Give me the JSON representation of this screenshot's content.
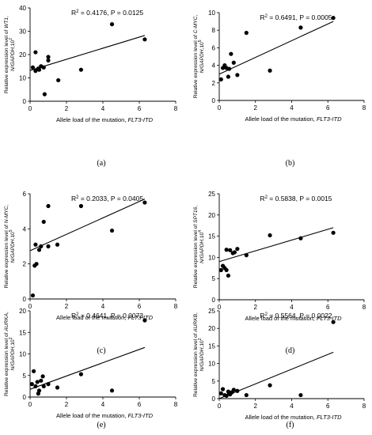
{
  "figure": {
    "panel_labels": [
      "(a)",
      "(b)",
      "(c)",
      "(d)",
      "(e)",
      "(f)"
    ]
  },
  "chart_data": [
    {
      "type": "scatter",
      "panel": "(a)",
      "stat_text": "R² = 0.4176, P = 0.0125",
      "xlabel": "Allele load of the mutation, FLT3-ITD",
      "xlabel_parts": [
        "Allele load of the mutation, ",
        "FLT3-ITD"
      ],
      "ylabel_lines": [
        [
          "Relative expression level of ",
          "WT1",
          ","
        ],
        [
          "N/GAPDH",
          ",10",
          "2"
        ]
      ],
      "xlim": [
        0,
        8
      ],
      "ylim": [
        0,
        40
      ],
      "xticks": [
        "0",
        "2",
        "4",
        "6",
        "8"
      ],
      "yticks": [
        "0",
        "10",
        "20",
        "30",
        "40"
      ],
      "x": [
        0.15,
        0.3,
        0.3,
        0.45,
        0.5,
        0.6,
        0.75,
        0.8,
        1.0,
        1.0,
        1.55,
        2.8,
        4.5,
        6.3
      ],
      "y": [
        14.5,
        13.0,
        21.0,
        14.0,
        13.5,
        15.0,
        14.5,
        3.0,
        19.0,
        17.5,
        9.0,
        13.5,
        33.0,
        26.5
      ],
      "trend": [
        [
          0,
          13.2
        ],
        [
          6.3,
          28.2
        ]
      ]
    },
    {
      "type": "scatter",
      "panel": "(b)",
      "stat_text": "R² = 0.6491, P = 0.0005",
      "xlabel": "Allele load of the mutation, FLT3-ITD",
      "xlabel_parts": [
        "Allele load of the mutation, ",
        "FLT3-ITD"
      ],
      "ylabel_lines": [
        [
          "Relative expression level of ",
          "C-MYC",
          ","
        ],
        [
          "N/GAPDH",
          ",10",
          "5"
        ]
      ],
      "xlim": [
        0,
        8
      ],
      "ylim": [
        0,
        10
      ],
      "xticks": [
        "0",
        "2",
        "4",
        "6",
        "8"
      ],
      "yticks": [
        "0",
        "2",
        "4",
        "6",
        "8",
        "10"
      ],
      "x": [
        0.1,
        0.2,
        0.3,
        0.4,
        0.5,
        0.55,
        0.65,
        0.8,
        1.0,
        1.5,
        2.8,
        4.5,
        6.3
      ],
      "y": [
        2.4,
        3.7,
        4.0,
        3.7,
        2.7,
        3.6,
        5.3,
        4.3,
        2.9,
        7.7,
        3.4,
        8.3,
        9.4
      ],
      "trend": [
        [
          0,
          3.0
        ],
        [
          6.3,
          9.0
        ]
      ]
    },
    {
      "type": "scatter",
      "panel": "(c)",
      "stat_text": "R² = 0.2033, P = 0.0405",
      "xlabel": "Allele load of the mutation, FLT3-ITD",
      "xlabel_parts": [
        "Allele load of the mutation, ",
        "FLT3-ITD"
      ],
      "ylabel_lines": [
        [
          "Relative expression level of ",
          "N-MYC",
          ","
        ],
        [
          "N/GAPDH",
          ",10",
          "5"
        ]
      ],
      "xlim": [
        0,
        8
      ],
      "ylim": [
        0,
        6
      ],
      "xticks": [
        "0",
        "2",
        "4",
        "6",
        "8"
      ],
      "yticks": [
        "0",
        "2",
        "4",
        "6"
      ],
      "x": [
        0.15,
        0.25,
        0.3,
        0.35,
        0.5,
        0.6,
        0.75,
        1.0,
        1.0,
        1.5,
        2.8,
        4.5,
        6.3
      ],
      "y": [
        0.2,
        1.9,
        3.1,
        2.0,
        2.8,
        3.0,
        4.4,
        5.3,
        3.0,
        3.1,
        5.3,
        3.9,
        5.5
      ],
      "trend": [
        [
          0,
          2.75
        ],
        [
          6.3,
          5.7
        ]
      ]
    },
    {
      "type": "scatter",
      "panel": "(d)",
      "stat_text": "R² = 0.5838, P = 0.0015",
      "xlabel": "Allele load of the mutation, FLT3-ITD",
      "xlabel_parts": [
        "Allele load of the mutation, ",
        "FLT3-ITD"
      ],
      "ylabel_lines": [
        [
          "Relative expression level of ",
          "SPT16",
          ","
        ],
        [
          "N/GAPDH",
          ",10",
          "4"
        ]
      ],
      "xlim": [
        0,
        8
      ],
      "ylim": [
        0,
        25
      ],
      "xticks": [
        "0",
        "2",
        "4",
        "6",
        "8"
      ],
      "yticks": [
        "0",
        "5",
        "10",
        "15",
        "20",
        "25"
      ],
      "x": [
        0.1,
        0.2,
        0.3,
        0.4,
        0.4,
        0.5,
        0.6,
        0.75,
        0.85,
        1.0,
        1.5,
        2.8,
        4.5,
        6.3
      ],
      "y": [
        7.0,
        8.0,
        7.5,
        7.0,
        11.8,
        5.7,
        11.7,
        11.0,
        11.2,
        12.0,
        10.5,
        15.2,
        14.5,
        15.8
      ],
      "trend": [
        [
          0,
          9.0
        ],
        [
          6.3,
          17.0
        ]
      ]
    },
    {
      "type": "scatter",
      "panel": "(e)",
      "stat_text": "R² = 0.4641, P = 0.0073",
      "xlabel": "Allele load of the mutation, FLT3-ITD",
      "xlabel_parts": [
        "Allele load of the mutation, ",
        "FLT3-ITD"
      ],
      "ylabel_lines": [
        [
          "Relative expression level of ",
          "AURKA",
          ","
        ],
        [
          "N/GAPDH",
          ",10",
          "2"
        ]
      ],
      "xlim": [
        0,
        8
      ],
      "ylim": [
        0,
        20
      ],
      "xticks": [
        "0",
        "2",
        "4",
        "6",
        "8"
      ],
      "yticks": [
        "0",
        "5",
        "10",
        "15",
        "20"
      ],
      "x": [
        0.1,
        0.2,
        0.3,
        0.4,
        0.45,
        0.5,
        0.6,
        0.7,
        0.75,
        1.0,
        1.5,
        2.8,
        4.5,
        6.3
      ],
      "y": [
        3.0,
        6.0,
        2.5,
        3.5,
        0.8,
        1.5,
        3.8,
        4.8,
        2.5,
        3.0,
        2.2,
        5.3,
        1.5,
        17.8
      ],
      "trend": [
        [
          0,
          1.8
        ],
        [
          6.3,
          11.5
        ]
      ]
    },
    {
      "type": "scatter",
      "panel": "(f)",
      "stat_text": "R² = 0.5564, P = 0.0022",
      "xlabel": "Allele load of the mutation, FLT3-ITD",
      "xlabel_parts": [
        "Allele load of the mutation, ",
        "FLT3-ITD"
      ],
      "ylabel_lines": [
        [
          "Relative expression level of ",
          "AURKB",
          ","
        ],
        [
          "N/GAPDH",
          ",10",
          "2"
        ]
      ],
      "xlim": [
        0,
        8
      ],
      "ylim": [
        0,
        25
      ],
      "xticks": [
        "0",
        "2",
        "4",
        "6",
        "8"
      ],
      "yticks": [
        "0",
        "5",
        "10",
        "15",
        "20",
        "25"
      ],
      "x": [
        0.1,
        0.2,
        0.3,
        0.4,
        0.5,
        0.55,
        0.6,
        0.7,
        0.8,
        1.0,
        1.5,
        2.8,
        4.5,
        6.3
      ],
      "y": [
        1.5,
        2.7,
        1.0,
        0.8,
        2.0,
        1.5,
        1.2,
        1.8,
        2.5,
        2.2,
        1.0,
        3.8,
        1.0,
        21.8
      ],
      "trend": [
        [
          0,
          0.0
        ],
        [
          6.3,
          13.2
        ]
      ]
    }
  ]
}
